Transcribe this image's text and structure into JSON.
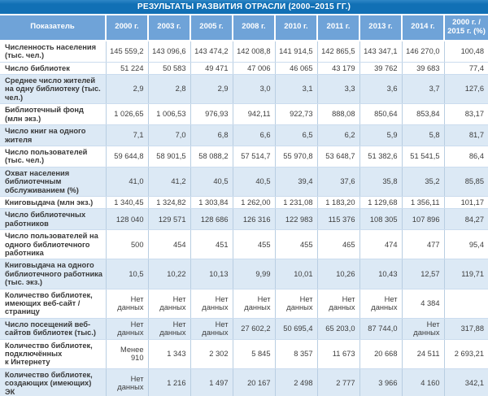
{
  "title": "РЕЗУЛЬТАТЫ РАЗВИТИЯ ОТРАСЛИ (2000–2015 ГГ.)",
  "colors": {
    "title_bar": "#1170B5",
    "header_row": "#6FA3D8",
    "stripe": "#DCE9F5",
    "grid_line": "#B9CEE2",
    "row_line": "#CBDCEE",
    "text": "#3D3D3D",
    "header_text": "#FFFFFF",
    "background": "#FFFFFF"
  },
  "table": {
    "columns": [
      "Показатель",
      "2000 г.",
      "2003 г.",
      "2005 г.",
      "2008 г.",
      "2010 г.",
      "2011 г.",
      "2013 г.",
      "2014 г.",
      "2000 г. / 2015 г. (%)"
    ],
    "rows": [
      {
        "label": "Численность населения (тыс. чел.)",
        "values": [
          "145 559,2",
          "143 096,6",
          "143 474,2",
          "142 008,8",
          "141 914,5",
          "142 865,5",
          "143 347,1",
          "146 270,0",
          "100,48"
        ]
      },
      {
        "label": "Число библиотек",
        "values": [
          "51 224",
          "50 583",
          "49 471",
          "47 006",
          "46 065",
          "43 179",
          "39 762",
          "39 683",
          "77,4"
        ]
      },
      {
        "label": "Среднее число жителей на одну библиотеку (тыс. чел.)",
        "values": [
          "2,9",
          "2,8",
          "2,9",
          "3,0",
          "3,1",
          "3,3",
          "3,6",
          "3,7",
          "127,6"
        ]
      },
      {
        "label": "Библиотечный фонд (млн экз.)",
        "values": [
          "1 026,65",
          "1 006,53",
          "976,93",
          "942,11",
          "922,73",
          "888,08",
          "850,64",
          "853,84",
          "83,17"
        ]
      },
      {
        "label": "Число книг на одного жителя",
        "values": [
          "7,1",
          "7,0",
          "6,8",
          "6,6",
          "6,5",
          "6,2",
          "5,9",
          "5,8",
          "81,7"
        ]
      },
      {
        "label": "Число пользователей (тыс. чел.)",
        "values": [
          "59 644,8",
          "58 901,5",
          "58 088,2",
          "57 514,7",
          "55 970,8",
          "53 648,7",
          "51 382,6",
          "51 541,5",
          "86,4"
        ]
      },
      {
        "label": "Охват населения библиотечным обслуживанием (%)",
        "values": [
          "41,0",
          "41,2",
          "40,5",
          "40,5",
          "39,4",
          "37,6",
          "35,8",
          "35,2",
          "85,85"
        ]
      },
      {
        "label": "Книговыдача (млн экз.)",
        "values": [
          "1 340,45",
          "1 324,82",
          "1 303,84",
          "1 262,00",
          "1 231,08",
          "1 183,20",
          "1 129,68",
          "1 356,11",
          "101,17"
        ]
      },
      {
        "label": "Число библиотечных работников",
        "values": [
          "128 040",
          "129 571",
          "128 686",
          "126 316",
          "122 983",
          "115 376",
          "108 305",
          "107 896",
          "84,27"
        ]
      },
      {
        "label": "Число пользователей на одного библиотечного работника",
        "values": [
          "500",
          "454",
          "451",
          "455",
          "455",
          "465",
          "474",
          "477",
          "95,4"
        ]
      },
      {
        "label": "Книговыдача на одного библиотечного работника (тыс. экз.)",
        "values": [
          "10,5",
          "10,22",
          "10,13",
          "9,99",
          "10,01",
          "10,26",
          "10,43",
          "12,57",
          "119,71"
        ]
      },
      {
        "label": "Количество библиотек, имеющих веб-сайт / страницу",
        "values": [
          "Нет данных",
          "Нет данных",
          "Нет данных",
          "Нет данных",
          "Нет данных",
          "Нет данных",
          "Нет данных",
          "4 384",
          ""
        ]
      },
      {
        "label": "Число посещений веб-сайтов библиотек (тыс.)",
        "values": [
          "Нет данных",
          "Нет данных",
          "Нет данных",
          "27 602,2",
          "50 695,4",
          "65 203,0",
          "87 744,0",
          "Нет данных",
          "317,88"
        ]
      },
      {
        "label": "Количество библиотек, подключённых к Интернету",
        "values": [
          "Менее 910",
          "1 343",
          "2 302",
          "5 845",
          "8 357",
          "11 673",
          "20 668",
          "24 511",
          "2 693,21"
        ]
      },
      {
        "label": "Количество библиотек, создающих (имеющих) ЭК",
        "values": [
          "Нет данных",
          "1 216",
          "1 497",
          "20 167",
          "2 498",
          "2 777",
          "3 966",
          "4 160",
          "342,1"
        ]
      }
    ]
  }
}
